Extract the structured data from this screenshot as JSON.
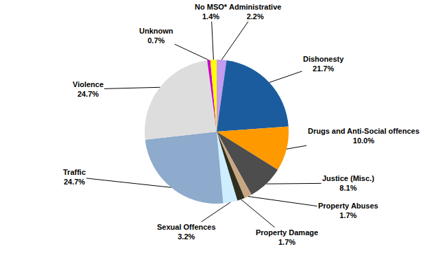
{
  "chart_data": {
    "type": "pie",
    "categories": [
      "Administrative",
      "Dishonesty",
      "Drugs and Anti-Social offences",
      "Justice (Misc.)",
      "Property Abuses",
      "Property Damage",
      "Sexual Offences",
      "Traffic",
      "Violence",
      "Unknown",
      "No MSO*"
    ],
    "values": [
      2.2,
      21.7,
      10.0,
      8.1,
      1.7,
      1.7,
      3.2,
      24.7,
      24.7,
      0.7,
      1.4
    ],
    "value_labels": [
      "2.2%",
      "21.7%",
      "10.0%",
      "8.1%",
      "1.7%",
      "1.7%",
      "3.2%",
      "24.7%",
      "24.7%",
      "0.7%",
      "1.4%"
    ],
    "colors": [
      "#c39bf0",
      "#1b5c9e",
      "#ff9900",
      "#4d4d4d",
      "#c8a882",
      "#2f2f1f",
      "#cceeff",
      "#8eaacc",
      "#dddddd",
      "#cc00cc",
      "#ffff00"
    ],
    "data_labels": true
  }
}
